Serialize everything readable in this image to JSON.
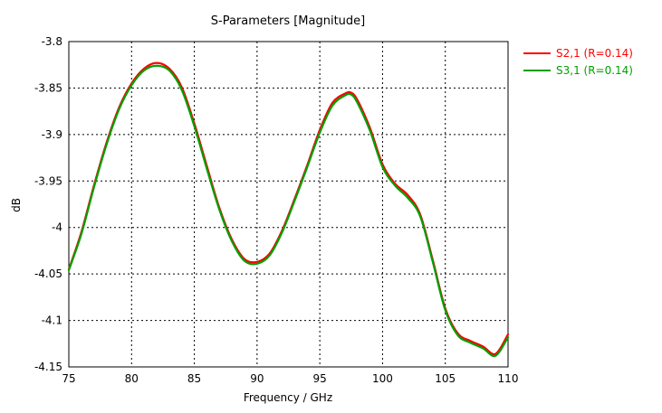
{
  "chart_data": {
    "type": "line",
    "title": "S-Parameters [Magnitude]",
    "xlabel": "Frequency / GHz",
    "ylabel": "dB",
    "xlim": [
      75,
      110
    ],
    "ylim": [
      -4.15,
      -3.8
    ],
    "xticks": [
      75,
      80,
      85,
      90,
      95,
      100,
      105,
      110
    ],
    "yticks": [
      -3.8,
      -3.85,
      -3.9,
      -3.95,
      -4,
      -4.05,
      -4.1,
      -4.15
    ],
    "ytick_labels": [
      "-3.8",
      "-3.85",
      "-3.9",
      "-3.95",
      "-4",
      "-4.05",
      "-4.1",
      "-4.15"
    ],
    "grid": true,
    "legend_position": "right-top",
    "series": [
      {
        "name": "S2,1 (R=0.14)",
        "color": "#ff0000",
        "x": [
          75,
          76,
          77,
          78,
          79,
          80,
          81,
          82,
          83,
          84,
          85,
          86,
          87,
          88,
          89,
          90,
          91,
          92,
          93,
          94,
          95,
          96,
          97,
          97.5,
          98,
          99,
          100,
          101,
          102,
          103,
          104,
          105,
          106,
          107,
          108,
          109,
          110
        ],
        "values": [
          -4.045,
          -4.005,
          -3.955,
          -3.909,
          -3.871,
          -3.845,
          -3.829,
          -3.823,
          -3.829,
          -3.849,
          -3.888,
          -3.934,
          -3.979,
          -4.013,
          -4.034,
          -4.037,
          -4.028,
          -4.003,
          -3.969,
          -3.933,
          -3.895,
          -3.866,
          -3.856,
          -3.855,
          -3.863,
          -3.893,
          -3.932,
          -3.953,
          -3.965,
          -3.986,
          -4.035,
          -4.087,
          -4.114,
          -4.122,
          -4.128,
          -4.136,
          -4.115
        ]
      },
      {
        "name": "S3,1 (R=0.14)",
        "color": "#00a000",
        "x": [
          75,
          76,
          77,
          78,
          79,
          80,
          81,
          82,
          83,
          84,
          85,
          86,
          87,
          88,
          89,
          90,
          91,
          92,
          93,
          94,
          95,
          96,
          97,
          97.5,
          98,
          99,
          100,
          101,
          102,
          103,
          104,
          105,
          106,
          107,
          108,
          109,
          110
        ],
        "values": [
          -4.046,
          -4.007,
          -3.957,
          -3.911,
          -3.873,
          -3.847,
          -3.831,
          -3.826,
          -3.831,
          -3.852,
          -3.891,
          -3.937,
          -3.981,
          -4.015,
          -4.036,
          -4.039,
          -4.03,
          -4.005,
          -3.971,
          -3.935,
          -3.898,
          -3.869,
          -3.858,
          -3.857,
          -3.866,
          -3.896,
          -3.935,
          -3.955,
          -3.968,
          -3.988,
          -4.037,
          -4.089,
          -4.116,
          -4.124,
          -4.13,
          -4.138,
          -4.118
        ]
      }
    ]
  }
}
